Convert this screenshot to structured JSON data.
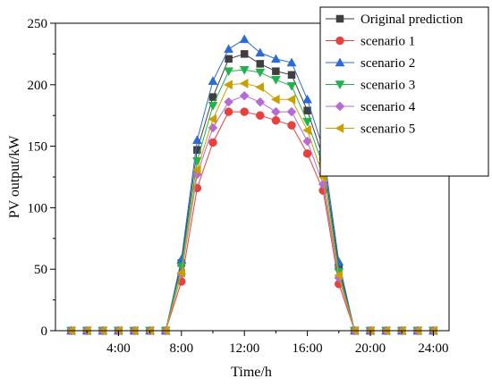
{
  "chart_data": {
    "type": "line",
    "title": "",
    "xlabel": "Time/h",
    "ylabel": "PV output/kW",
    "xlim": [
      0,
      25
    ],
    "ylim": [
      0,
      250
    ],
    "xticks": [
      4,
      8,
      12,
      16,
      20,
      24
    ],
    "xtick_labels": [
      "4:00",
      "8:00",
      "12:00",
      "16:00",
      "20:00",
      "24:00"
    ],
    "yticks": [
      0,
      50,
      100,
      150,
      200,
      250
    ],
    "ytick_labels": [
      "0",
      "50",
      "100",
      "150",
      "200",
      "250"
    ],
    "grid": false,
    "legend_position": "top-right",
    "x": [
      1,
      2,
      3,
      4,
      5,
      6,
      7,
      8,
      9,
      10,
      11,
      12,
      13,
      14,
      15,
      16,
      17,
      18,
      19,
      20,
      21,
      22,
      23,
      24
    ],
    "series": [
      {
        "name": "Original prediction",
        "color": "#3f3f3f",
        "marker": "square",
        "values": [
          0,
          0,
          0,
          0,
          0,
          0,
          0,
          55,
          147,
          190,
          221,
          225,
          217,
          211,
          208,
          179,
          141,
          52,
          0,
          0,
          0,
          0,
          0,
          0
        ]
      },
      {
        "name": "scenario 1",
        "color": "#e8403f",
        "marker": "circle",
        "values": [
          0,
          0,
          0,
          0,
          0,
          0,
          0,
          40,
          116,
          153,
          178,
          178,
          175,
          171,
          167,
          144,
          114,
          38,
          0,
          0,
          0,
          0,
          0,
          0
        ]
      },
      {
        "name": "scenario 2",
        "color": "#2c6bd6",
        "marker": "triangle-up",
        "values": [
          0,
          0,
          0,
          0,
          0,
          0,
          0,
          58,
          155,
          203,
          229,
          237,
          226,
          221,
          218,
          188,
          148,
          56,
          0,
          0,
          0,
          0,
          0,
          0
        ]
      },
      {
        "name": "scenario 3",
        "color": "#22b14c",
        "marker": "triangle-down",
        "values": [
          0,
          0,
          0,
          0,
          0,
          0,
          0,
          52,
          138,
          183,
          211,
          212,
          210,
          204,
          199,
          170,
          134,
          48,
          0,
          0,
          0,
          0,
          0,
          0
        ]
      },
      {
        "name": "scenario 4",
        "color": "#b66ad7",
        "marker": "diamond",
        "values": [
          0,
          0,
          0,
          0,
          0,
          0,
          0,
          46,
          127,
          165,
          186,
          191,
          186,
          178,
          178,
          154,
          119,
          43,
          0,
          0,
          0,
          0,
          0,
          0
        ]
      },
      {
        "name": "scenario 5",
        "color": "#c9a000",
        "marker": "triangle-left",
        "values": [
          0,
          0,
          0,
          0,
          0,
          0,
          0,
          47,
          131,
          172,
          200,
          201,
          198,
          188,
          188,
          163,
          125,
          45,
          0,
          0,
          0,
          0,
          0,
          0
        ]
      }
    ]
  }
}
